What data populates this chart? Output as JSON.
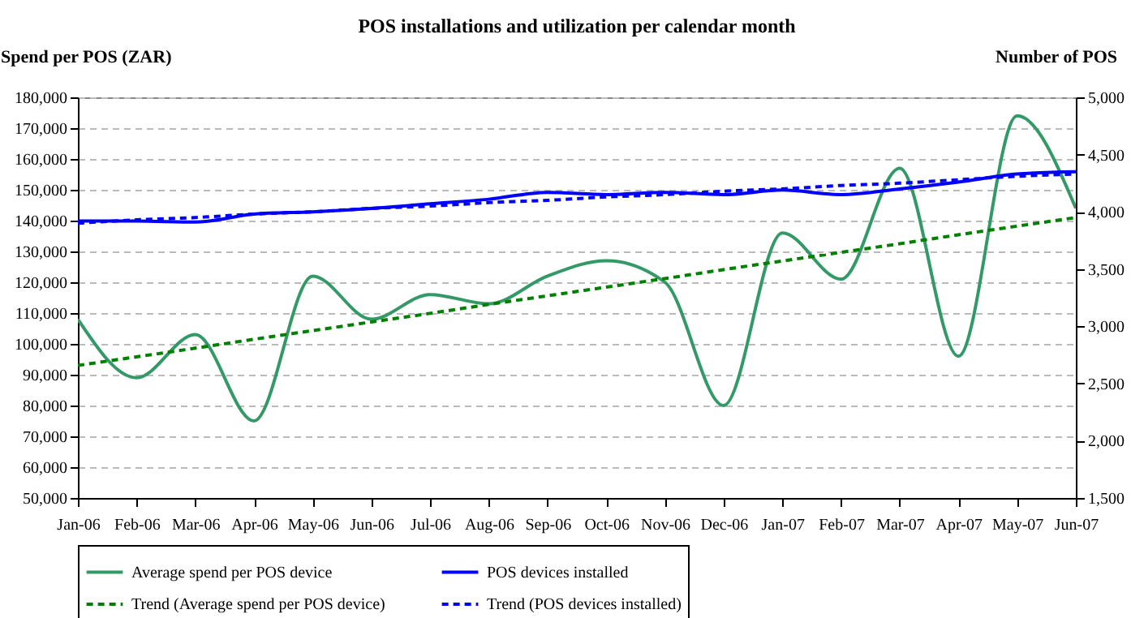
{
  "chart_data": {
    "type": "line",
    "title": "POS installations and utilization per calendar month",
    "ylabel": "Spend per POS (ZAR)",
    "y2label": "Number of POS",
    "categories": [
      "Jan-06",
      "Feb-06",
      "Mar-06",
      "Apr-06",
      "May-06",
      "Jun-06",
      "Jul-06",
      "Aug-06",
      "Sep-06",
      "Oct-06",
      "Nov-06",
      "Dec-06",
      "Jan-07",
      "Feb-07",
      "Mar-07",
      "Apr-07",
      "May-07",
      "Jun-07"
    ],
    "series": [
      {
        "name": "Average spend per POS device",
        "color": "#339966",
        "line_style": "solid",
        "values": [
          108000,
          89000,
          103000,
          75000,
          122000,
          108000,
          116000,
          113000,
          122000,
          127000,
          120000,
          80000,
          136000,
          121000,
          157000,
          96000,
          174000,
          144000
        ]
      },
      {
        "name": "POS devices installed",
        "color": "#0000ff",
        "line_style": "solid",
        "axis": "y2",
        "values": [
          3920,
          3920,
          3910,
          3980,
          4000,
          4030,
          4070,
          4110,
          4170,
          4150,
          4170,
          4150,
          4190,
          4150,
          4200,
          4260,
          4330,
          4350
        ]
      },
      {
        "name": "Trend (Average spend per POS device)",
        "color": "#008000",
        "line_style": "dashed",
        "values": [
          93000,
          95800,
          98600,
          101500,
          104300,
          107100,
          109900,
          112800,
          115600,
          118400,
          121200,
          124100,
          126900,
          129700,
          132500,
          135400,
          138200,
          141000
        ]
      },
      {
        "name": "Trend (POS devices installed)",
        "color": "#0000ff",
        "line_style": "dashed",
        "axis": "y2",
        "values": [
          3900,
          3930,
          3950,
          3980,
          4000,
          4030,
          4050,
          4080,
          4100,
          4130,
          4150,
          4180,
          4200,
          4230,
          4250,
          4280,
          4310,
          4330
        ]
      }
    ],
    "ylim": [
      50000,
      180000
    ],
    "yticks": [
      {
        "value": 50000,
        "label": "50,000"
      },
      {
        "value": 60000,
        "label": "60,000"
      },
      {
        "value": 70000,
        "label": "70,000"
      },
      {
        "value": 80000,
        "label": "80,000"
      },
      {
        "value": 90000,
        "label": "90,000"
      },
      {
        "value": 100000,
        "label": "100,000"
      },
      {
        "value": 110000,
        "label": "110,000"
      },
      {
        "value": 120000,
        "label": "120,000"
      },
      {
        "value": 130000,
        "label": "130,000"
      },
      {
        "value": 140000,
        "label": "140,000"
      },
      {
        "value": 150000,
        "label": "150,000"
      },
      {
        "value": 160000,
        "label": "160,000"
      },
      {
        "value": 170000,
        "label": "170,000"
      },
      {
        "value": 180000,
        "label": "180,000"
      }
    ],
    "y2lim": [
      1500,
      5000
    ],
    "y2ticks": [
      {
        "value": 1500,
        "label": "1,500"
      },
      {
        "value": 2000,
        "label": "2,000"
      },
      {
        "value": 2500,
        "label": "2,500"
      },
      {
        "value": 3000,
        "label": "3,000"
      },
      {
        "value": 3500,
        "label": "3,500"
      },
      {
        "value": 4000,
        "label": "4,000"
      },
      {
        "value": 4500,
        "label": "4,500"
      },
      {
        "value": 5000,
        "label": "5,000"
      }
    ],
    "grid": "y",
    "legend": "bottom",
    "marker": "none"
  }
}
